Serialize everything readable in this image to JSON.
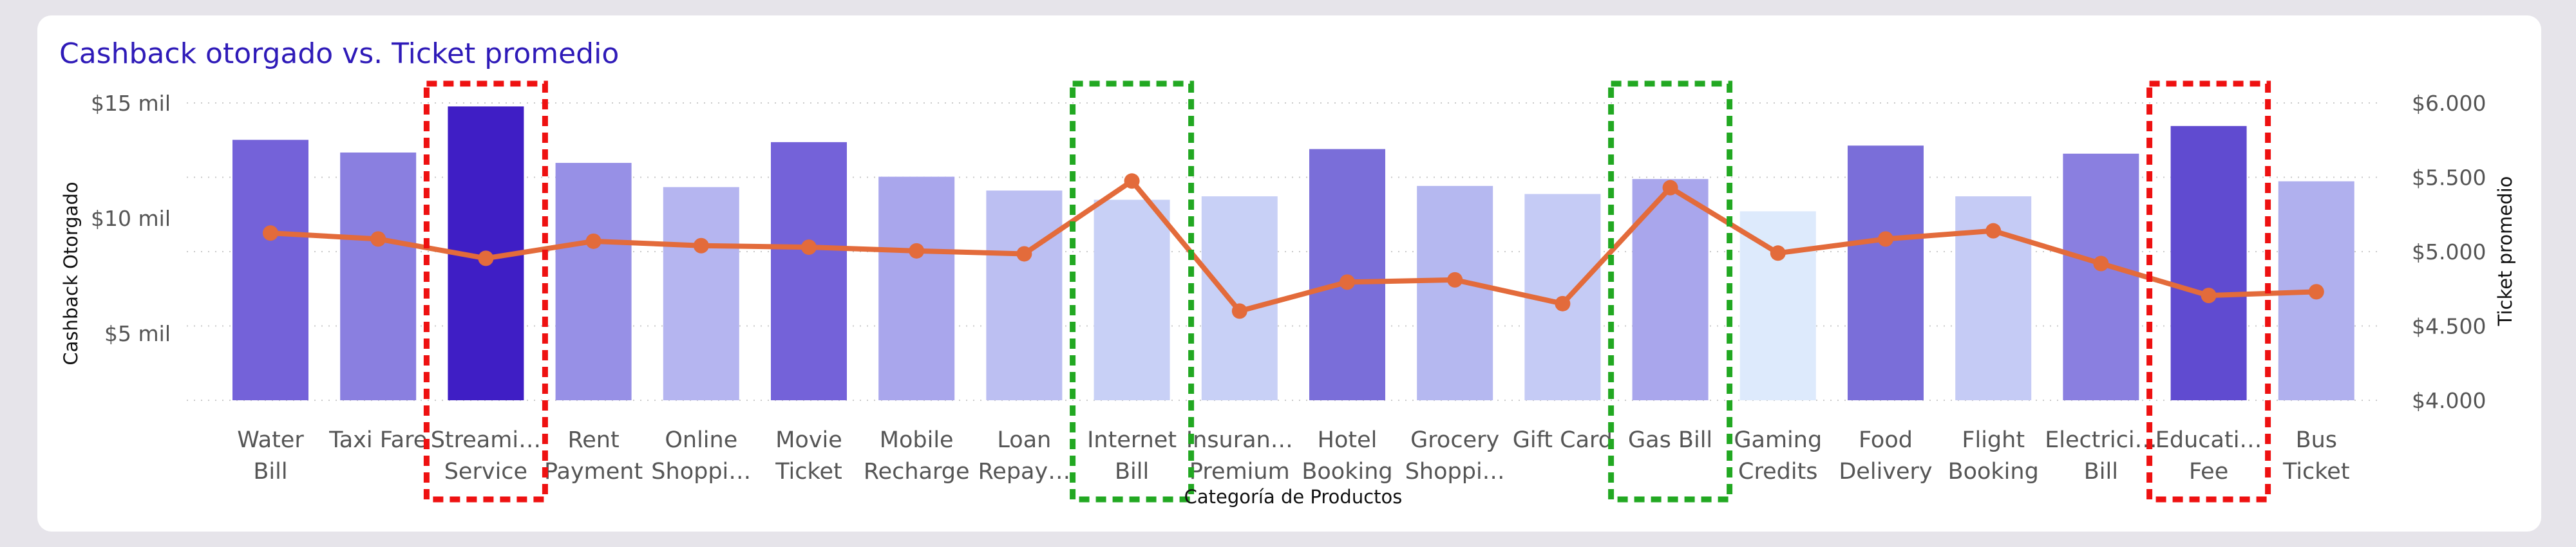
{
  "chart_data": {
    "type": "bar+line",
    "title": "Cashback otorgado vs. Ticket promedio",
    "xlabel": "Categoría de Productos",
    "ylabel_left": "Cashback Otorgado",
    "ylabel_right": "Ticket promedio",
    "left_ticks": [
      "$5 mil",
      "$10 mil",
      "$15 mil"
    ],
    "left_tick_values": [
      5000,
      10000,
      15000
    ],
    "right_ticks": [
      "$4.000",
      "$4.500",
      "$5.000",
      "$5.500",
      "$6.000"
    ],
    "right_tick_values": [
      4000,
      4500,
      5000,
      5500,
      6000
    ],
    "left_axis_range": [
      2100,
      15300
    ],
    "right_axis_range": [
      4000,
      6000
    ],
    "gridlines": true,
    "categories": [
      [
        "Water",
        "Bill"
      ],
      [
        "Taxi Fare"
      ],
      [
        "Streami…",
        "Service"
      ],
      [
        "Rent",
        "Payment"
      ],
      [
        "Online",
        "Shoppi…"
      ],
      [
        "Movie",
        "Ticket"
      ],
      [
        "Mobile",
        "Recharge"
      ],
      [
        "Loan",
        "Repay…"
      ],
      [
        "Internet",
        "Bill"
      ],
      [
        "Insuran…",
        "Premium"
      ],
      [
        "Hotel",
        "Booking"
      ],
      [
        "Grocery",
        "Shoppi…"
      ],
      [
        "Gift Card"
      ],
      [
        "Gas Bill"
      ],
      [
        "Gaming",
        "Credits"
      ],
      [
        "Food",
        "Delivery"
      ],
      [
        "Flight",
        "Booking"
      ],
      [
        "Electrici…",
        "Bill"
      ],
      [
        "Educati…",
        "Fee"
      ],
      [
        "Bus",
        "Ticket"
      ]
    ],
    "series": [
      {
        "type": "bar",
        "axis": "left",
        "values": [
          13400,
          12850,
          14850,
          12400,
          11350,
          13300,
          11800,
          11200,
          10800,
          10950,
          13000,
          11400,
          11050,
          11700,
          10300,
          13150,
          10950,
          12800,
          14000,
          11600
        ],
        "colors": [
          "#7462d9",
          "#8a7fe0",
          "#3f1ec5",
          "#9790e6",
          "#b5b5f0",
          "#7462d9",
          "#a9a6ec",
          "#bcbff2",
          "#c8d0f6",
          "#c8d0f6",
          "#7a6ed9",
          "#b5b8f0",
          "#c5cbf5",
          "#a9a6ec",
          "#ddeafc",
          "#7a6ed9",
          "#c5cbf5",
          "#8a7fe0",
          "#604bd0",
          "#b0b0ee"
        ]
      },
      {
        "type": "line",
        "axis": "right",
        "color": "#e36b3b",
        "values": [
          5125,
          5085,
          4955,
          5070,
          5040,
          5030,
          5005,
          4985,
          5475,
          4600,
          4795,
          4810,
          4650,
          5430,
          4990,
          5085,
          5140,
          4920,
          4705,
          4730
        ]
      }
    ],
    "highlights": [
      {
        "category_index": 2,
        "color": "#ee1111"
      },
      {
        "category_index": 8,
        "color": "#22a822"
      },
      {
        "category_index": 13,
        "color": "#22a822"
      },
      {
        "category_index": 18,
        "color": "#ee1111"
      }
    ]
  }
}
